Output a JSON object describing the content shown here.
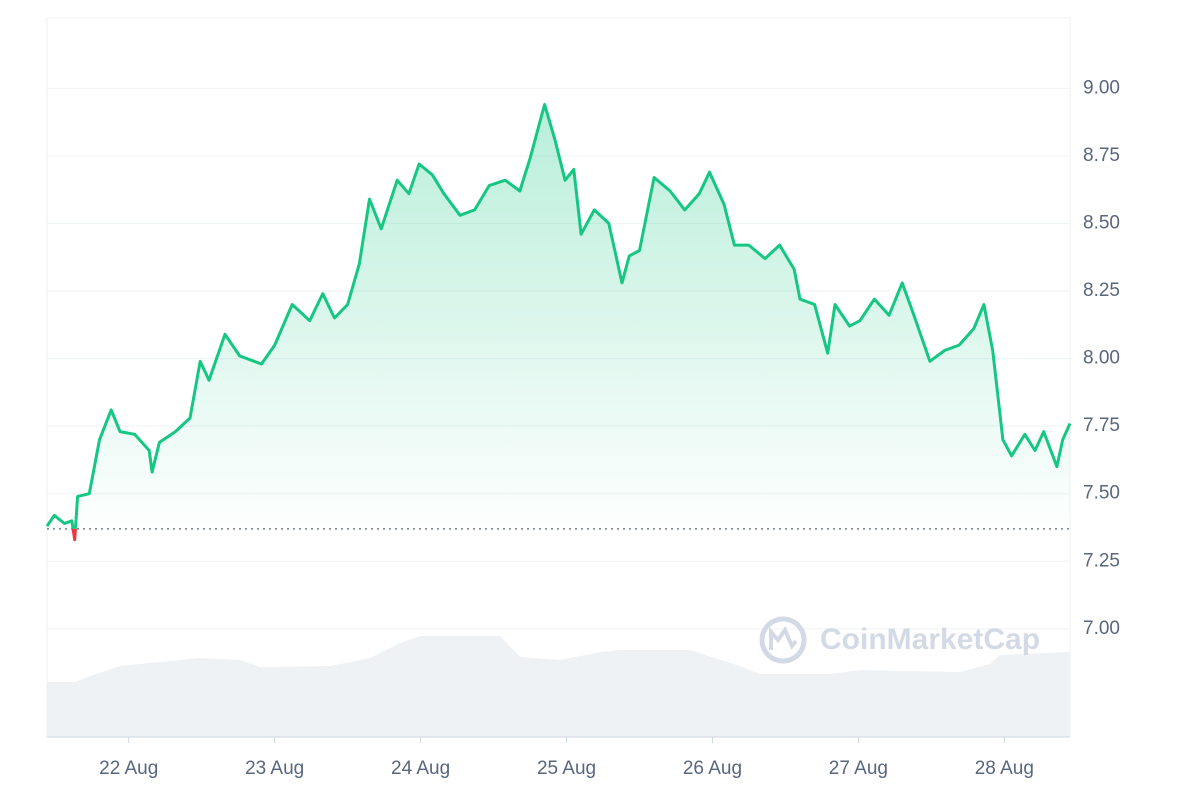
{
  "chart_data": {
    "type": "line",
    "watermark": "CoinMarketCap",
    "x": [
      -0.56,
      -0.51,
      -0.44,
      -0.39,
      -0.37,
      -0.35,
      -0.27,
      -0.2,
      -0.12,
      -0.06,
      0.04,
      0.14,
      0.16,
      0.21,
      0.32,
      0.42,
      0.49,
      0.55,
      0.66,
      0.76,
      0.91,
      1.0,
      1.12,
      1.24,
      1.33,
      1.41,
      1.5,
      1.58,
      1.65,
      1.73,
      1.84,
      1.92,
      1.99,
      2.08,
      2.16,
      2.27,
      2.37,
      2.47,
      2.58,
      2.68,
      2.75,
      2.85,
      2.92,
      2.99,
      3.05,
      3.1,
      3.19,
      3.29,
      3.38,
      3.43,
      3.5,
      3.6,
      3.71,
      3.81,
      3.91,
      3.98,
      4.08,
      4.15,
      4.25,
      4.36,
      4.46,
      4.56,
      4.6,
      4.7,
      4.79,
      4.84,
      4.94,
      5.01,
      5.11,
      5.21,
      5.3,
      5.38,
      5.49,
      5.59,
      5.69,
      5.79,
      5.86,
      5.92,
      5.99,
      6.05,
      6.14,
      6.21,
      6.27,
      6.36,
      6.4,
      6.45
    ],
    "values": [
      7.38,
      7.42,
      7.39,
      7.4,
      7.33,
      7.49,
      7.5,
      7.7,
      7.81,
      7.73,
      7.72,
      7.66,
      7.58,
      7.69,
      7.73,
      7.78,
      7.99,
      7.92,
      8.09,
      8.01,
      7.98,
      8.05,
      8.2,
      8.14,
      8.24,
      8.15,
      8.2,
      8.35,
      8.59,
      8.48,
      8.66,
      8.61,
      8.72,
      8.68,
      8.61,
      8.53,
      8.55,
      8.64,
      8.66,
      8.62,
      8.74,
      8.94,
      8.81,
      8.66,
      8.7,
      8.46,
      8.55,
      8.5,
      8.28,
      8.38,
      8.4,
      8.67,
      8.62,
      8.55,
      8.61,
      8.69,
      8.57,
      8.42,
      8.42,
      8.37,
      8.42,
      8.33,
      8.22,
      8.2,
      8.02,
      8.2,
      8.12,
      8.14,
      8.22,
      8.16,
      8.28,
      8.16,
      7.99,
      8.03,
      8.05,
      8.11,
      8.2,
      8.03,
      7.7,
      7.64,
      7.72,
      7.66,
      7.73,
      7.6,
      7.7,
      7.76
    ],
    "color": "#16c784",
    "down_color": "#ea3943",
    "baseline": 7.37,
    "xlim": [
      -0.56,
      6.45
    ],
    "xticks": [
      {
        "value": 0,
        "label": "22 Aug"
      },
      {
        "value": 1,
        "label": "23 Aug"
      },
      {
        "value": 2,
        "label": "24 Aug"
      },
      {
        "value": 3,
        "label": "25 Aug"
      },
      {
        "value": 4,
        "label": "26 Aug"
      },
      {
        "value": 5,
        "label": "27 Aug"
      },
      {
        "value": 6,
        "label": "28 Aug"
      }
    ],
    "ylim": [
      6.6,
      9.26
    ],
    "yticks": [
      {
        "value": 7,
        "label": "7.00"
      },
      {
        "value": 7.25,
        "label": "7.25"
      },
      {
        "value": 7.5,
        "label": "7.50"
      },
      {
        "value": 7.75,
        "label": "7.75"
      },
      {
        "value": 8,
        "label": "8.00"
      },
      {
        "value": 8.25,
        "label": "8.25"
      },
      {
        "value": 8.5,
        "label": "8.50"
      },
      {
        "value": 8.75,
        "label": "8.75"
      },
      {
        "value": 9,
        "label": "9.00"
      }
    ],
    "grid": true
  }
}
